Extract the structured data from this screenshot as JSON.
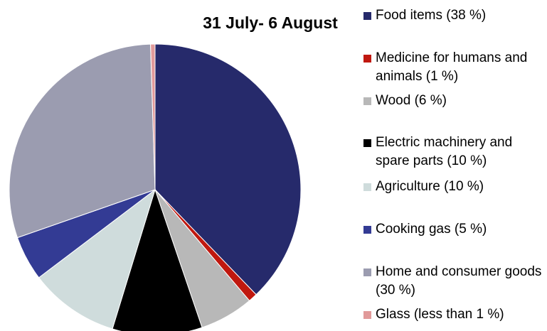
{
  "chart_data": {
    "type": "pie",
    "title": "31 July- 6 August",
    "categories": [
      "Food items (38 %)",
      "Medicine for humans and animals (1 %)",
      "Wood (6 %)",
      "Electric machinery and spare parts (10 %)",
      "Agriculture (10 %)",
      "Cooking gas (5 %)",
      "Home and consumer goods (30 %)",
      "Glass (less than 1 %)"
    ],
    "values": [
      38,
      1,
      6,
      10,
      10,
      5,
      30,
      0.5
    ],
    "colors": [
      "#262a6b",
      "#c0180f",
      "#b8b8b8",
      "#000000",
      "#cfdcdc",
      "#333b94",
      "#9b9cb0",
      "#e19a9a"
    ],
    "legend": "right"
  }
}
